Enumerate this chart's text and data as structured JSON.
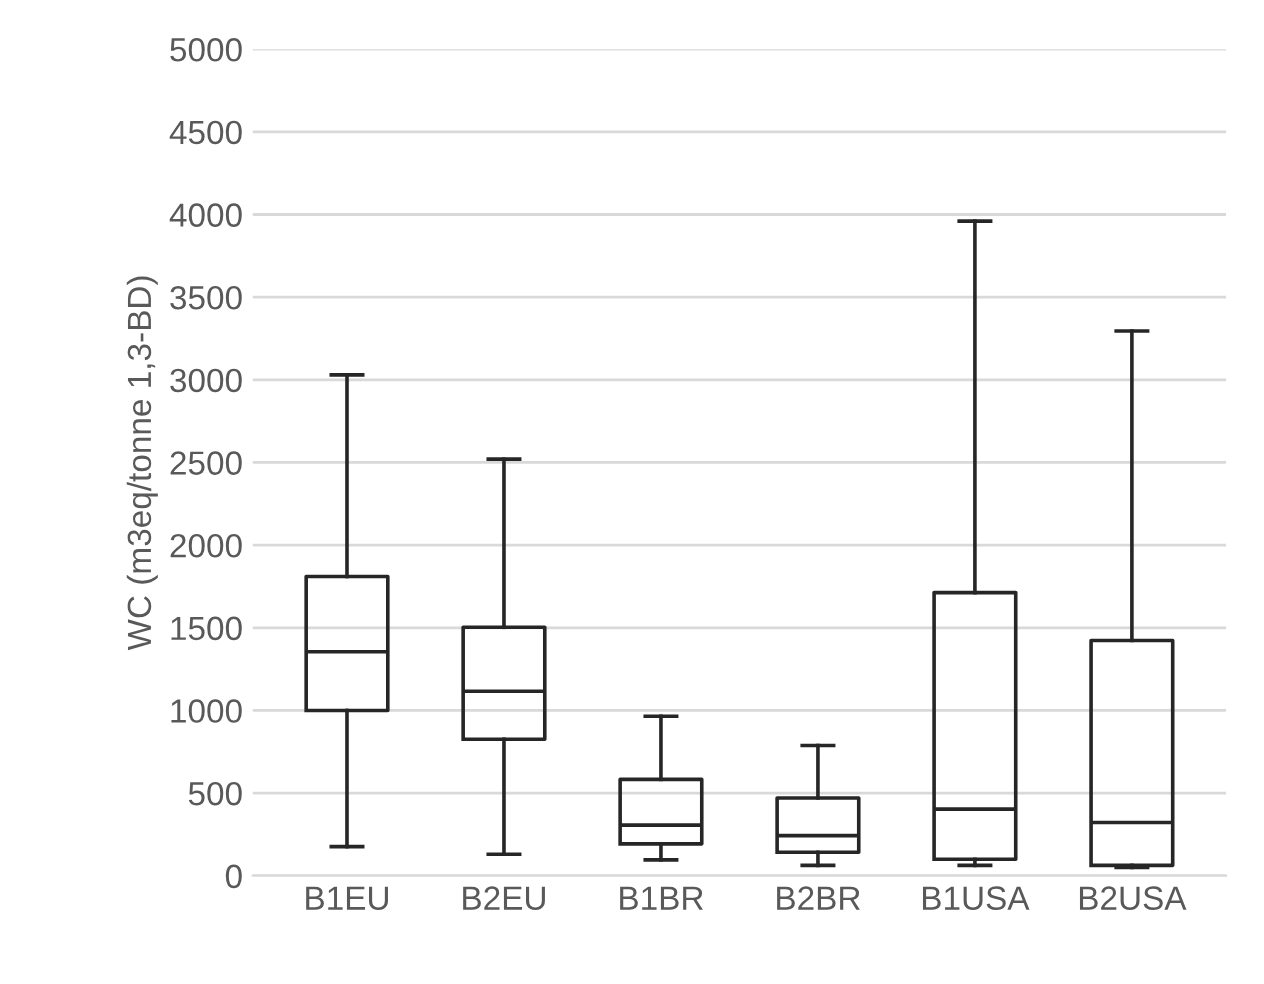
{
  "chart_data": {
    "type": "box",
    "ylabel": "WC (m3eq/tonne 1,3-BD)",
    "categories": [
      "B1EU",
      "B2EU",
      "B1BR",
      "B2BR",
      "B1USA",
      "B2USA"
    ],
    "boxes": [
      {
        "low": 176,
        "q1": 1000,
        "median": 1355,
        "q3": 1810,
        "high": 3030
      },
      {
        "low": 130,
        "q1": 826,
        "median": 1116,
        "q3": 1503,
        "high": 2520
      },
      {
        "low": 96,
        "q1": 193,
        "median": 306,
        "q3": 583,
        "high": 965
      },
      {
        "low": 63,
        "q1": 142,
        "median": 243,
        "q3": 470,
        "high": 788
      },
      {
        "low": 63,
        "q1": 100,
        "median": 403,
        "q3": 1713,
        "high": 3960
      },
      {
        "low": 50,
        "q1": 63,
        "median": 322,
        "q3": 1423,
        "high": 3295
      }
    ],
    "color": "#262626",
    "ylim": [
      0,
      5000
    ],
    "yticks": [
      0,
      500,
      1000,
      1500,
      2000,
      2500,
      3000,
      3500,
      4000,
      4500,
      5000
    ],
    "grid": "y",
    "legend": false
  }
}
